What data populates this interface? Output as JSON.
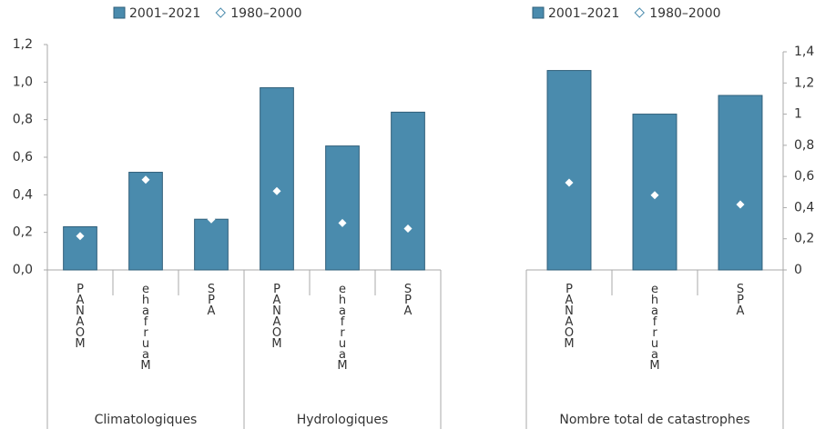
{
  "chart_data": [
    {
      "type": "bar",
      "categories": [
        "PANAOM",
        "ehafruaM",
        "SPA",
        "PANAOM",
        "ehafruaM",
        "SPA"
      ],
      "group_labels": [
        "Climatologiques",
        "Hydrologiques"
      ],
      "series": [
        {
          "name": "2001–2021",
          "color": "#4a8bad",
          "marker": "bar",
          "values": [
            0.23,
            0.52,
            0.27,
            0.97,
            0.66,
            0.84
          ]
        },
        {
          "name": "1980–2000",
          "color": "#ffffff",
          "marker": "diamond",
          "values": [
            0.18,
            0.48,
            0.27,
            0.42,
            0.25,
            0.22
          ]
        }
      ],
      "ylim": [
        0,
        1.2
      ],
      "yticks": [
        {
          "value": 0,
          "label": "0,0"
        },
        {
          "value": 0.2,
          "label": "0,2"
        },
        {
          "value": 0.4,
          "label": "0,4"
        },
        {
          "value": 0.6,
          "label": "0,6"
        },
        {
          "value": 0.8,
          "label": "0,8"
        },
        {
          "value": 1,
          "label": "1,0"
        },
        {
          "value": 1.2,
          "label": "1,2"
        }
      ],
      "axis_side": "left",
      "legend": "top"
    },
    {
      "type": "bar",
      "categories": [
        "PANAOM",
        "ehafruaM",
        "SPA"
      ],
      "group_labels": [
        "Nombre total de catastrophes"
      ],
      "series": [
        {
          "name": "2001–2021",
          "color": "#4a8bad",
          "marker": "bar",
          "values": [
            1.28,
            1.0,
            1.12
          ]
        },
        {
          "name": "1980–2000",
          "color": "#ffffff",
          "marker": "diamond",
          "values": [
            0.56,
            0.48,
            0.42
          ]
        }
      ],
      "ylim": [
        0,
        1.4
      ],
      "yticks": [
        0,
        {
          "value": 0.2,
          "label": "0,2"
        },
        {
          "value": 0.4,
          "label": "0,4"
        },
        {
          "value": 0.6,
          "label": "0,6"
        },
        {
          "value": 0.8,
          "label": "0,8"
        },
        1,
        {
          "value": 1.2,
          "label": "1,2"
        },
        {
          "value": 1.4,
          "label": "1,4"
        }
      ],
      "axis_side": "right",
      "legend": "top"
    }
  ]
}
